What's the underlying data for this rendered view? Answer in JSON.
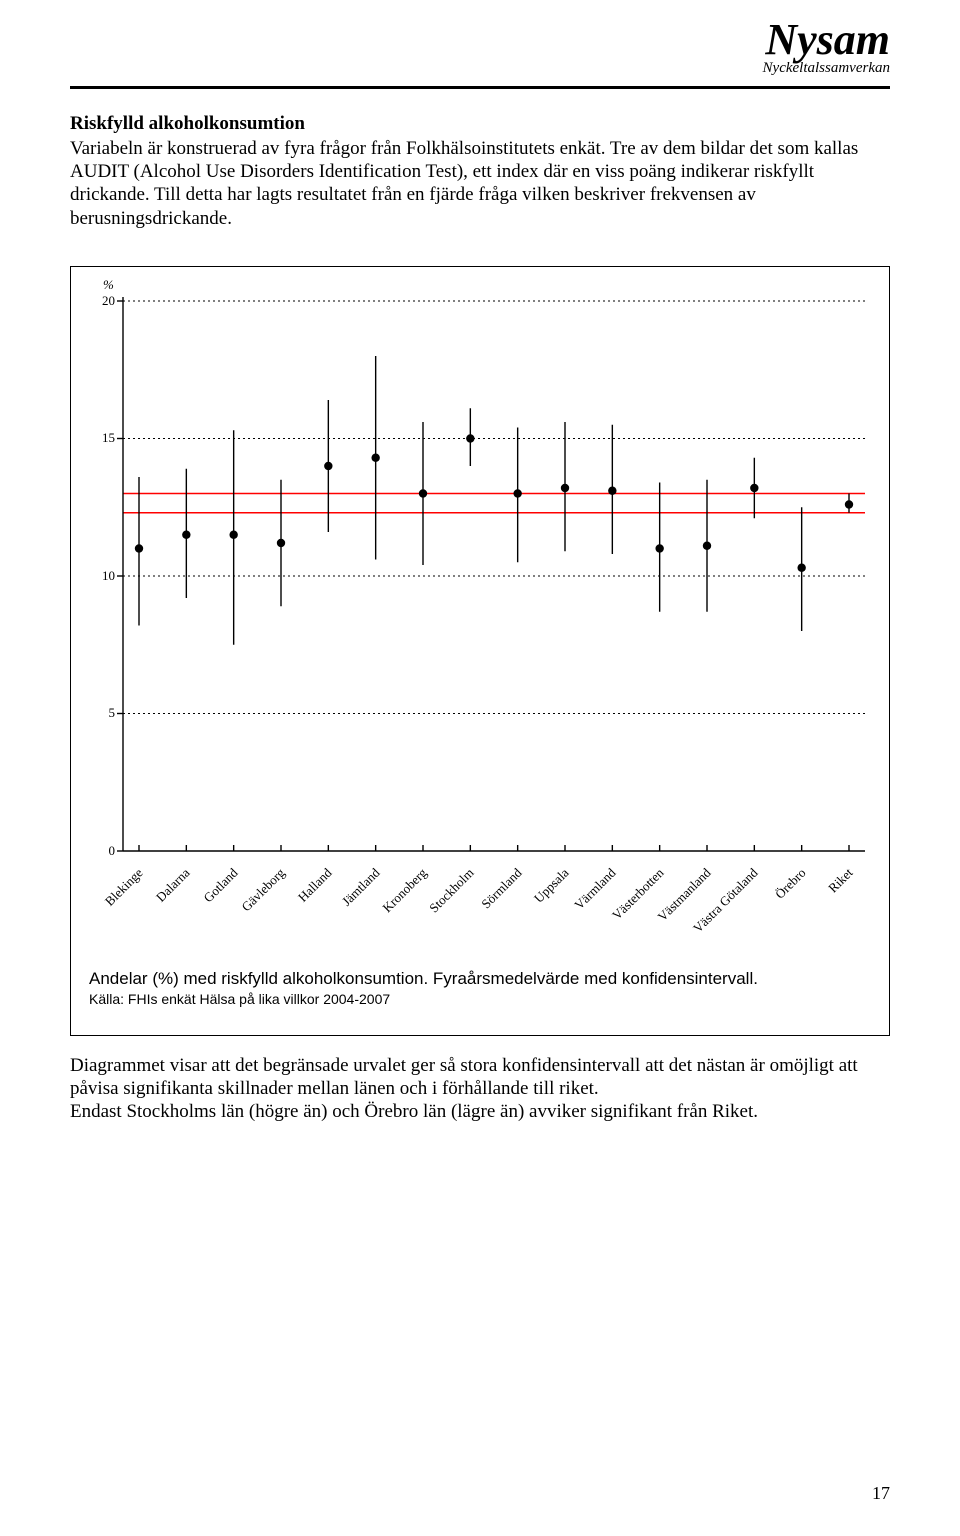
{
  "brand": {
    "name": "Nysam",
    "sub": "Nyckeltalssamverkan"
  },
  "heading": "Riskfylld alkoholkonsumtion",
  "intro": "Variabeln är konstruerad av fyra frågor från Folkhälsoinstitutets enkät. Tre av dem bildar det som kallas AUDIT (Alcohol Use Disorders Identification Test), ett index där en viss poäng indikerar riskfyllt drickande. Till detta har lagts resultatet från en fjärde fråga vilken beskriver frekvensen av berusningsdrickande.",
  "chart": {
    "type": "scatter-ci",
    "y_axis_symbol": "%",
    "ylim": [
      0,
      20
    ],
    "yticks": [
      0,
      5,
      10,
      15,
      20
    ],
    "grid_color": "transparent",
    "axis_color": "#000000",
    "dash_color": "#000000",
    "point_color": "#000000",
    "ci_color": "#000000",
    "ref_color": "#ff0000",
    "ref_low": 12.3,
    "ref_high": 13.0,
    "categories": [
      "Blekinge",
      "Dalarna",
      "Gotland",
      "Gävleborg",
      "Halland",
      "Jämtland",
      "Kronoberg",
      "Stockholm",
      "Sörmland",
      "Uppsala",
      "Värmland",
      "Västerbotten",
      "Västmanland",
      "Västra Götaland",
      "Örebro",
      "Riket"
    ],
    "points": [
      {
        "y": 11.0,
        "lo": 8.2,
        "hi": 13.6
      },
      {
        "y": 11.5,
        "lo": 9.2,
        "hi": 13.9
      },
      {
        "y": 11.5,
        "lo": 7.5,
        "hi": 15.3
      },
      {
        "y": 11.2,
        "lo": 8.9,
        "hi": 13.5
      },
      {
        "y": 14.0,
        "lo": 11.6,
        "hi": 16.4
      },
      {
        "y": 14.3,
        "lo": 10.6,
        "hi": 18.0
      },
      {
        "y": 13.0,
        "lo": 10.4,
        "hi": 15.6
      },
      {
        "y": 15.0,
        "lo": 14.0,
        "hi": 16.1
      },
      {
        "y": 13.0,
        "lo": 10.5,
        "hi": 15.4
      },
      {
        "y": 13.2,
        "lo": 10.9,
        "hi": 15.6
      },
      {
        "y": 13.1,
        "lo": 10.8,
        "hi": 15.5
      },
      {
        "y": 11.0,
        "lo": 8.7,
        "hi": 13.4
      },
      {
        "y": 11.1,
        "lo": 8.7,
        "hi": 13.5
      },
      {
        "y": 13.2,
        "lo": 12.1,
        "hi": 14.3
      },
      {
        "y": 10.3,
        "lo": 8.0,
        "hi": 12.5
      },
      {
        "y": 12.6,
        "lo": 12.3,
        "hi": 13.0
      }
    ],
    "caption_main": "Andelar (%) med riskfylld alkoholkonsumtion. Fyraårsmedelvärde med konfidensintervall.",
    "caption_src": "Källa: FHIs enkät Hälsa på lika villkor 2004-2007"
  },
  "outro": "Diagrammet visar att det begränsade urvalet ger så stora konfidensintervall att det nästan är omöjligt att påvisa signifikanta skillnader mellan länen och i förhållande till riket.\nEndast Stockholms län (högre än) och Örebro län (lägre än) avviker signifikant från Riket.",
  "page_number": "17"
}
